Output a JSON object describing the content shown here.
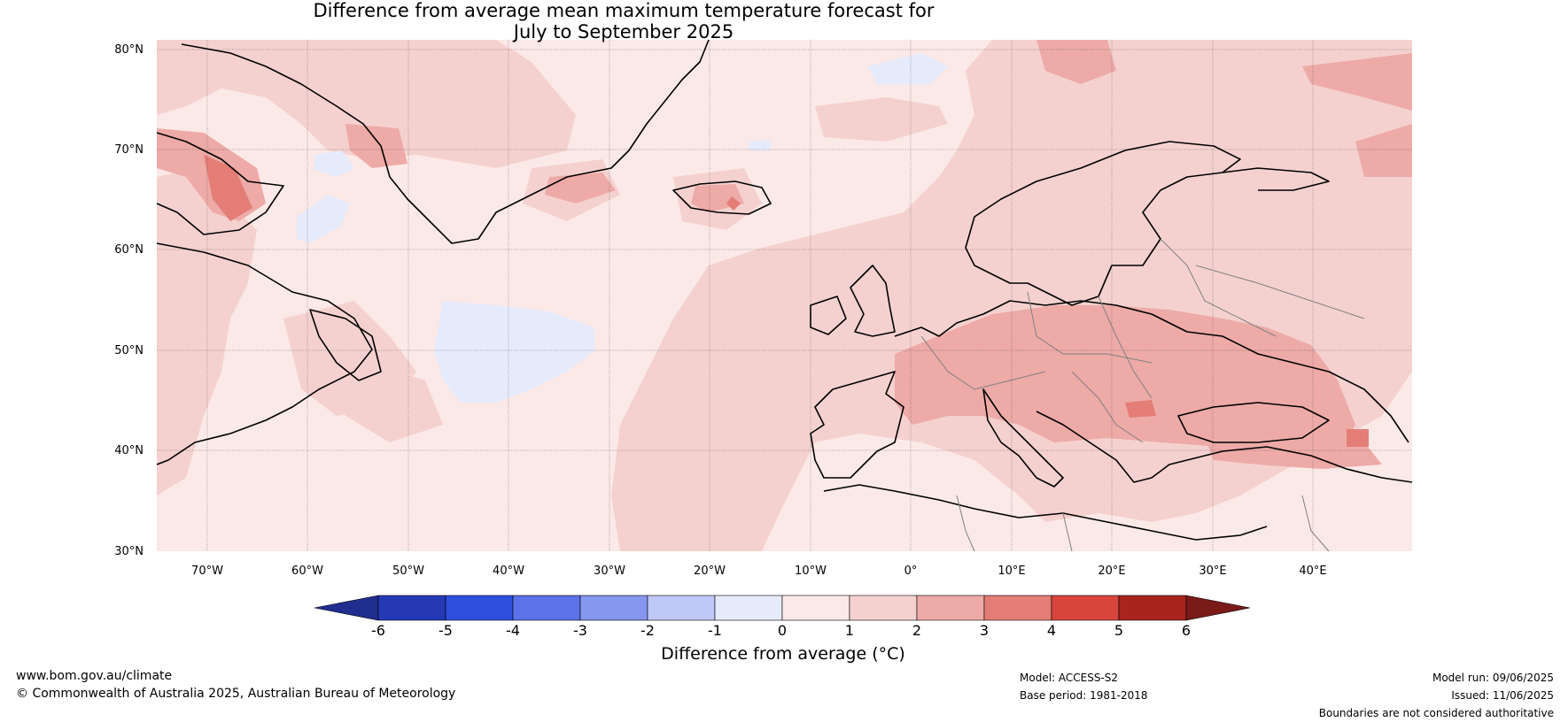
{
  "title": {
    "line1": "Difference from average mean maximum temperature forecast for",
    "line2": "July to September 2025"
  },
  "map": {
    "lat_labels": [
      "80°N",
      "70°N",
      "60°N",
      "50°N",
      "40°N",
      "30°N"
    ],
    "lon_labels": [
      "70°W",
      "60°W",
      "50°W",
      "40°W",
      "30°W",
      "20°W",
      "10°W",
      "0°",
      "10°E",
      "20°E",
      "30°E",
      "40°E"
    ],
    "ocean_base_color": "#fbe9e7",
    "land_line_color": "#000000",
    "border_line_color": "#808080"
  },
  "colorbar": {
    "ticks": [
      "-6",
      "-5",
      "-4",
      "-3",
      "-2",
      "-1",
      "0",
      "1",
      "2",
      "3",
      "4",
      "5",
      "6"
    ],
    "colors": [
      "#1f2e8f",
      "#2539b5",
      "#2f4fdf",
      "#5b72e8",
      "#8496ee",
      "#bfc8f6",
      "#e6ebfc",
      "#fbe9e7",
      "#f4d1cf",
      "#edaaa7",
      "#e47d76",
      "#d8453d",
      "#a9241d",
      "#7a1b17"
    ],
    "label": "Difference from average (°C)"
  },
  "footer": {
    "website": "www.bom.gov.au/climate",
    "copyright": "© Commonwealth of Australia 2025, Australian Bureau of Meteorology",
    "model": "Model: ACCESS-S2",
    "base_period": "Base period: 1981-2018",
    "model_run": "Model run: 09/06/2025",
    "issued": "Issued: 11/06/2025",
    "disclaimer": "Boundaries are not considered authoritative"
  }
}
